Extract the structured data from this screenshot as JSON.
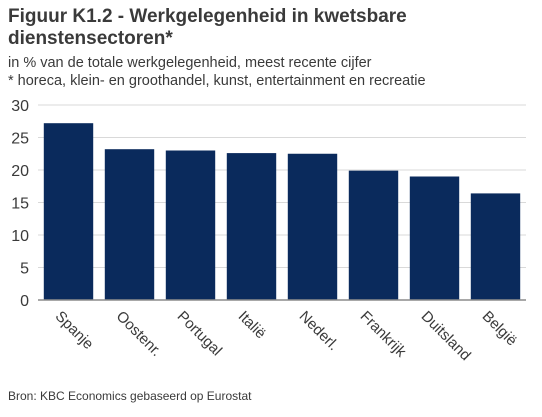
{
  "title": "Figuur K1.2 - Werkgelegenheid in kwetsbare dienstensectoren*",
  "subtitle_line1": "in % van de totale werkgelegenheid, meest recente cijfer",
  "subtitle_line2": "* horeca, klein- en groothandel, kunst, entertainment en recreatie",
  "source": "Bron: KBC Economics gebaseerd op Eurostat",
  "colors": {
    "bar": "#0a2a5c",
    "grid": "#d9d9d9",
    "axis": "#8c8c8c",
    "text": "#3a3a3a"
  },
  "chart_data": {
    "type": "bar",
    "categories": [
      "Spanje",
      "Oostenr.",
      "Portugal",
      "Italië",
      "Nederl.",
      "Frankrijk",
      "Duitsland",
      "België"
    ],
    "values": [
      27.2,
      23.2,
      23.0,
      22.6,
      22.5,
      19.9,
      19.0,
      16.4
    ],
    "ylim": [
      0,
      30
    ],
    "yticks": [
      0,
      5,
      10,
      15,
      20,
      25,
      30
    ],
    "grid": true,
    "xlabel": "",
    "ylabel": ""
  }
}
